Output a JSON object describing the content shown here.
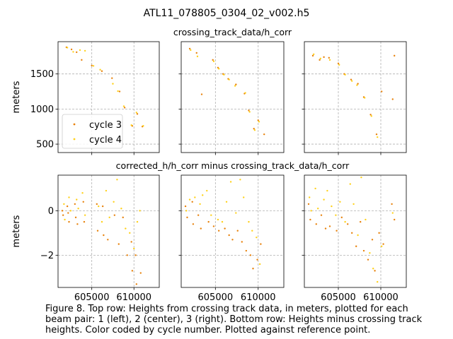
{
  "figure": {
    "suptitle": "ATL11_078805_0304_02_v002.h5",
    "caption": "Figure 8. Top row: Heights from crossing track data, in meters, plotted for each\nbeam pair: 1 (left), 2 (center), 3 (right). Bottom row: Heights minus crossing track\nheights. Color coded by cycle number. Plotted against reference point."
  },
  "colors": {
    "cycle3": "#e8820c",
    "cycle4": "#ffd11a",
    "grid": "#b0b0b0",
    "axis": "#000000"
  },
  "chart_data": [
    {
      "type": "scatter",
      "row": "top",
      "beam_pair": 1,
      "title": "",
      "ylabel": "meters",
      "xlim": [
        601000,
        613000
      ],
      "ylim": [
        380,
        1960
      ],
      "yticks": [
        500,
        1000,
        1500
      ],
      "xticks": [
        605000,
        610000
      ],
      "show_xticklabels": false,
      "legend": {
        "placement": "lower-left",
        "entries": [
          "cycle 3",
          "cycle 4"
        ]
      },
      "series": [
        {
          "name": "cycle 3",
          "points": [
            [
              602000,
              1880
            ],
            [
              602600,
              1850
            ],
            [
              603200,
              1810
            ],
            [
              603800,
              1700
            ],
            [
              605000,
              1620
            ],
            [
              606200,
              1540
            ],
            [
              607400,
              1440
            ],
            [
              608300,
              1250
            ],
            [
              608900,
              1020
            ],
            [
              609800,
              760
            ],
            [
              610400,
              930
            ],
            [
              611000,
              750
            ]
          ]
        },
        {
          "name": "cycle 4",
          "points": [
            [
              602100,
              1875
            ],
            [
              602800,
              1815
            ],
            [
              603600,
              1840
            ],
            [
              604200,
              1830
            ],
            [
              605200,
              1615
            ],
            [
              606000,
              1560
            ],
            [
              607500,
              1360
            ],
            [
              608100,
              1255
            ],
            [
              608800,
              1040
            ],
            [
              609700,
              770
            ],
            [
              610300,
              950
            ],
            [
              611100,
              760
            ]
          ]
        }
      ]
    },
    {
      "type": "scatter",
      "row": "top",
      "beam_pair": 2,
      "title": "crossing_track_data/h_corr",
      "xlim": [
        601000,
        613000
      ],
      "ylim": [
        380,
        1960
      ],
      "yticks": [
        500,
        1000,
        1500
      ],
      "xticks": [
        605000,
        610000
      ],
      "show_xticklabels": false,
      "show_yticklabels": false,
      "series": [
        {
          "name": "cycle 3",
          "points": [
            [
              602000,
              1860
            ],
            [
              602800,
              1800
            ],
            [
              603400,
              1210
            ],
            [
              604700,
              1700
            ],
            [
              605300,
              1590
            ],
            [
              605900,
              1500
            ],
            [
              606500,
              1430
            ],
            [
              607400,
              1350
            ],
            [
              608400,
              1220
            ],
            [
              608900,
              980
            ],
            [
              609500,
              720
            ],
            [
              610000,
              840
            ],
            [
              610700,
              640
            ]
          ]
        },
        {
          "name": "cycle 4",
          "points": [
            [
              602100,
              1840
            ],
            [
              602900,
              1750
            ],
            [
              604800,
              1680
            ],
            [
              605400,
              1575
            ],
            [
              606000,
              1490
            ],
            [
              606600,
              1420
            ],
            [
              607300,
              1330
            ],
            [
              608500,
              1230
            ],
            [
              609000,
              960
            ],
            [
              609600,
              700
            ],
            [
              610100,
              820
            ]
          ]
        }
      ]
    },
    {
      "type": "scatter",
      "row": "top",
      "beam_pair": 3,
      "title": "",
      "xlim": [
        601000,
        613000
      ],
      "ylim": [
        380,
        1960
      ],
      "yticks": [
        500,
        1000,
        1500
      ],
      "xticks": [
        605000,
        610000
      ],
      "show_xticklabels": false,
      "show_yticklabels": false,
      "series": [
        {
          "name": "cycle 3",
          "points": [
            [
              602000,
              1760
            ],
            [
              602800,
              1700
            ],
            [
              603300,
              1740
            ],
            [
              603900,
              1730
            ],
            [
              605000,
              1650
            ],
            [
              605700,
              1500
            ],
            [
              606500,
              1420
            ],
            [
              607300,
              1360
            ],
            [
              608000,
              1170
            ],
            [
              608800,
              920
            ],
            [
              609500,
              640
            ],
            [
              610100,
              1250
            ],
            [
              611400,
              1140
            ],
            [
              611600,
              1760
            ]
          ]
        },
        {
          "name": "cycle 4",
          "points": [
            [
              602100,
              1780
            ],
            [
              602900,
              1720
            ],
            [
              604000,
              1700
            ],
            [
              605100,
              1630
            ],
            [
              605800,
              1490
            ],
            [
              606600,
              1400
            ],
            [
              607200,
              1340
            ],
            [
              608100,
              1160
            ],
            [
              608900,
              900
            ],
            [
              609600,
              600
            ]
          ]
        }
      ]
    },
    {
      "type": "scatter",
      "row": "bottom",
      "beam_pair": 1,
      "title": "",
      "ylabel": "meters",
      "xlim": [
        601000,
        613000
      ],
      "ylim": [
        -3.45,
        1.6
      ],
      "yticks": [
        -2,
        0
      ],
      "xticks": [
        605000,
        610000
      ],
      "xticklabels": [
        "605000",
        "610000"
      ],
      "series": [
        {
          "name": "cycle 3",
          "points": [
            [
              601500,
              0.0
            ],
            [
              601600,
              -0.2
            ],
            [
              602100,
              0.2
            ],
            [
              602200,
              -0.1
            ],
            [
              602300,
              -0.5
            ],
            [
              603000,
              0.3
            ],
            [
              603100,
              -0.3
            ],
            [
              603300,
              -0.6
            ],
            [
              604000,
              0.4
            ],
            [
              604100,
              -0.5
            ],
            [
              605600,
              0.3
            ],
            [
              605700,
              -0.9
            ],
            [
              606300,
              0.2
            ],
            [
              606400,
              -1.1
            ],
            [
              606900,
              -1.3
            ],
            [
              607700,
              -0.2
            ],
            [
              608200,
              -1.5
            ],
            [
              608700,
              -0.3
            ],
            [
              609200,
              -2.0
            ],
            [
              609700,
              -1.4
            ],
            [
              609800,
              -2.7
            ],
            [
              610200,
              -2.0
            ],
            [
              610300,
              -3.3
            ],
            [
              610800,
              -2.8
            ]
          ]
        },
        {
          "name": "cycle 4",
          "points": [
            [
              601700,
              0.3
            ],
            [
              601800,
              -0.4
            ],
            [
              602300,
              0.6
            ],
            [
              602500,
              0.0
            ],
            [
              603200,
              0.5
            ],
            [
              603400,
              0.1
            ],
            [
              603900,
              0.8
            ],
            [
              604200,
              -0.2
            ],
            [
              605800,
              0.2
            ],
            [
              606200,
              -0.5
            ],
            [
              606700,
              0.9
            ],
            [
              607100,
              -0.3
            ],
            [
              607600,
              0.4
            ],
            [
              608000,
              1.4
            ],
            [
              608500,
              0.1
            ],
            [
              609000,
              -0.8
            ],
            [
              609500,
              -1.0
            ],
            [
              610000,
              -1.7
            ],
            [
              610400,
              -0.5
            ],
            [
              610700,
              0.0
            ]
          ]
        }
      ]
    },
    {
      "type": "scatter",
      "row": "bottom",
      "beam_pair": 2,
      "title": "corrected_h/h_corr minus crossing_track_data/h_corr",
      "xlim": [
        601000,
        613000
      ],
      "ylim": [
        -3.45,
        1.6
      ],
      "yticks": [
        -2,
        0
      ],
      "xticks": [
        605000,
        610000
      ],
      "xticklabels": [
        "605000",
        "610000"
      ],
      "show_yticklabels": false,
      "series": [
        {
          "name": "cycle 3",
          "points": [
            [
              601500,
              0.2
            ],
            [
              601700,
              -0.3
            ],
            [
              602300,
              0.4
            ],
            [
              602400,
              -0.6
            ],
            [
              603000,
              -0.2
            ],
            [
              603300,
              -0.8
            ],
            [
              604200,
              -0.5
            ],
            [
              604800,
              -0.7
            ],
            [
              605400,
              -0.9
            ],
            [
              606100,
              -0.8
            ],
            [
              606600,
              -1.1
            ],
            [
              607000,
              -1.3
            ],
            [
              607600,
              -0.9
            ],
            [
              608100,
              -1.4
            ],
            [
              608600,
              -1.8
            ],
            [
              609100,
              -2.0
            ],
            [
              609400,
              -2.6
            ],
            [
              609900,
              -2.2
            ],
            [
              610300,
              -1.5
            ]
          ]
        },
        {
          "name": "cycle 4",
          "points": [
            [
              601600,
              0.0
            ],
            [
              602000,
              0.5
            ],
            [
              602600,
              0.6
            ],
            [
              603200,
              0.3
            ],
            [
              603500,
              0.7
            ],
            [
              604000,
              0.9
            ],
            [
              604500,
              -0.2
            ],
            [
              605300,
              -0.4
            ],
            [
              605800,
              -0.5
            ],
            [
              606300,
              0.4
            ],
            [
              606800,
              1.3
            ],
            [
              607400,
              -0.1
            ],
            [
              607900,
              1.4
            ],
            [
              608300,
              0.6
            ],
            [
              608900,
              -0.5
            ],
            [
              609300,
              -0.9
            ],
            [
              609800,
              -1.2
            ],
            [
              610200,
              -2.4
            ]
          ]
        }
      ]
    },
    {
      "type": "scatter",
      "row": "bottom",
      "beam_pair": 3,
      "title": "",
      "xlim": [
        601000,
        613000
      ],
      "ylim": [
        -3.45,
        1.6
      ],
      "yticks": [
        -2,
        0
      ],
      "xticks": [
        605000,
        610000
      ],
      "xticklabels": [
        "605000",
        "610000"
      ],
      "show_yticklabels": false,
      "series": [
        {
          "name": "cycle 3",
          "points": [
            [
              601500,
              0.3
            ],
            [
              601700,
              -0.4
            ],
            [
              602400,
              -0.6
            ],
            [
              603000,
              -0.2
            ],
            [
              603500,
              -0.8
            ],
            [
              604000,
              -0.7
            ],
            [
              604800,
              -0.9
            ],
            [
              605400,
              -0.3
            ],
            [
              606100,
              -0.6
            ],
            [
              606600,
              -1.0
            ],
            [
              607100,
              -1.6
            ],
            [
              607600,
              -0.5
            ],
            [
              608000,
              -1.8
            ],
            [
              608500,
              -2.2
            ],
            [
              609000,
              -1.3
            ],
            [
              609300,
              -2.7
            ],
            [
              609800,
              -1.0
            ],
            [
              610300,
              -1.5
            ],
            [
              611300,
              0.3
            ],
            [
              611600,
              -0.4
            ]
          ]
        },
        {
          "name": "cycle 4",
          "points": [
            [
              601600,
              0.6
            ],
            [
              601800,
              0.0
            ],
            [
              602300,
              1.0
            ],
            [
              602600,
              0.1
            ],
            [
              603300,
              0.5
            ],
            [
              603700,
              0.9
            ],
            [
              604200,
              0.2
            ],
            [
              604700,
              -0.2
            ],
            [
              605200,
              0.4
            ],
            [
              605800,
              -0.5
            ],
            [
              606400,
              1.2
            ],
            [
              606800,
              0.3
            ],
            [
              607300,
              -1.1
            ],
            [
              607700,
              1.5
            ],
            [
              608200,
              -0.4
            ],
            [
              608700,
              -1.9
            ],
            [
              609100,
              -2.6
            ],
            [
              609600,
              -3.2
            ],
            [
              610100,
              -1.6
            ],
            [
              611400,
              -0.1
            ]
          ]
        }
      ]
    }
  ]
}
